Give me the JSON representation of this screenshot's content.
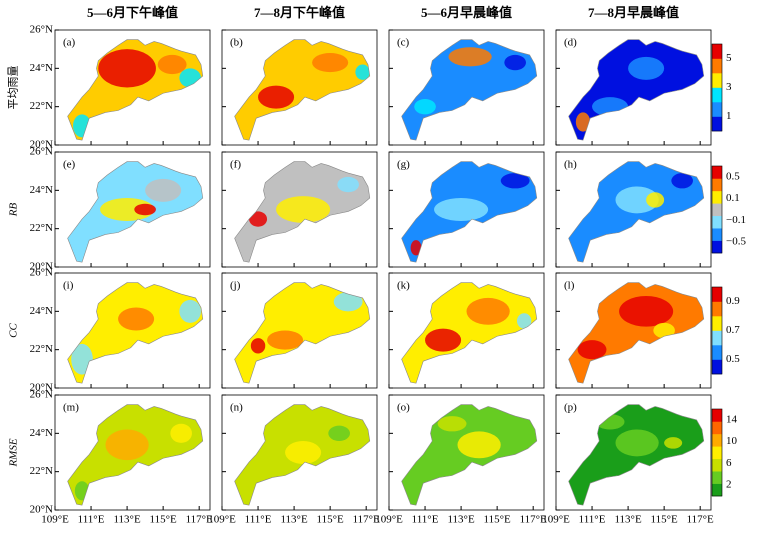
{
  "columns": [
    "5—6月下午峰值",
    "7—8月下午峰值",
    "5—6月早晨峰值",
    "7—8月早晨峰值"
  ],
  "rows": [
    {
      "label": "平均雨量",
      "panels": [
        "(a)",
        "(b)",
        "(c)",
        "(d)"
      ],
      "colorbar": {
        "colors": [
          "#0010e0",
          "#1a8cff",
          "#00e5ff",
          "#ffee00",
          "#ff7a00",
          "#e60000"
        ],
        "ticks": [
          "5",
          "3",
          "1"
        ]
      }
    },
    {
      "label": "RB",
      "panels": [
        "(e)",
        "(f)",
        "(g)",
        "(h)"
      ],
      "colorbar": {
        "colors": [
          "#0010e0",
          "#1a8cff",
          "#80dfff",
          "#c0c0c0",
          "#ffee00",
          "#ff7a00",
          "#e60000"
        ],
        "ticks": [
          "0.5",
          "0.1",
          "−0.1",
          "−0.5"
        ]
      }
    },
    {
      "label": "CC",
      "panels": [
        "(i)",
        "(j)",
        "(k)",
        "(l)"
      ],
      "colorbar": {
        "colors": [
          "#0010e0",
          "#1a8cff",
          "#80dfff",
          "#ffee00",
          "#ff7a00",
          "#e60000"
        ],
        "ticks": [
          "0.9",
          "0.7",
          "0.5"
        ]
      }
    },
    {
      "label": "RMSE",
      "panels": [
        "(m)",
        "(n)",
        "(o)",
        "(p)"
      ],
      "colorbar": {
        "colors": [
          "#1a9e1a",
          "#66cc22",
          "#c8e000",
          "#ffee00",
          "#ffaa00",
          "#ff6600",
          "#e60000"
        ],
        "ticks": [
          "14",
          "10",
          "6",
          "2"
        ]
      }
    }
  ],
  "axes": {
    "xlim": [
      109,
      117.6
    ],
    "ylim": [
      20,
      26
    ],
    "xticks": [
      {
        "value": 109,
        "label": "109°E"
      },
      {
        "value": 111,
        "label": "111°E"
      },
      {
        "value": 113,
        "label": "113°E"
      },
      {
        "value": 115,
        "label": "115°E"
      },
      {
        "value": 117,
        "label": "117°E"
      }
    ],
    "yticks": [
      {
        "value": 20,
        "label": "20°N"
      },
      {
        "value": 22,
        "label": "22°N"
      },
      {
        "value": 24,
        "label": "24°N"
      },
      {
        "value": 26,
        "label": "26°N"
      }
    ]
  }
}
